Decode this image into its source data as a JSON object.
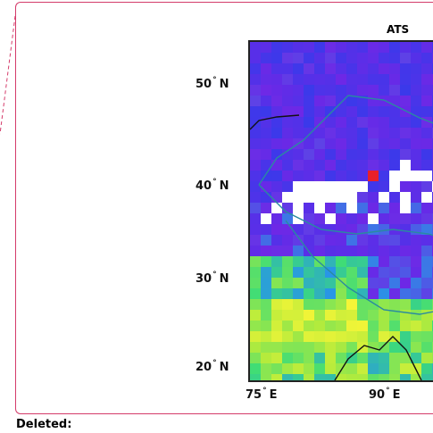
{
  "map": {
    "title": "ATS",
    "lat_ticks": [
      {
        "value": 50,
        "hemi": "N"
      },
      {
        "value": 40,
        "hemi": "N"
      },
      {
        "value": 30,
        "hemi": "N"
      },
      {
        "value": 20,
        "hemi": "N"
      }
    ],
    "lon_ticks": [
      {
        "value": 75,
        "hemi": "E"
      },
      {
        "value": 90,
        "hemi": "E"
      }
    ]
  },
  "comment": {
    "label": "Deleted:"
  },
  "colors": {
    "frame": "#d43b6a",
    "low": "#3a3ff0",
    "high": "#f5f53a",
    "mid": "#30e070",
    "missing": "#ffffff"
  }
}
